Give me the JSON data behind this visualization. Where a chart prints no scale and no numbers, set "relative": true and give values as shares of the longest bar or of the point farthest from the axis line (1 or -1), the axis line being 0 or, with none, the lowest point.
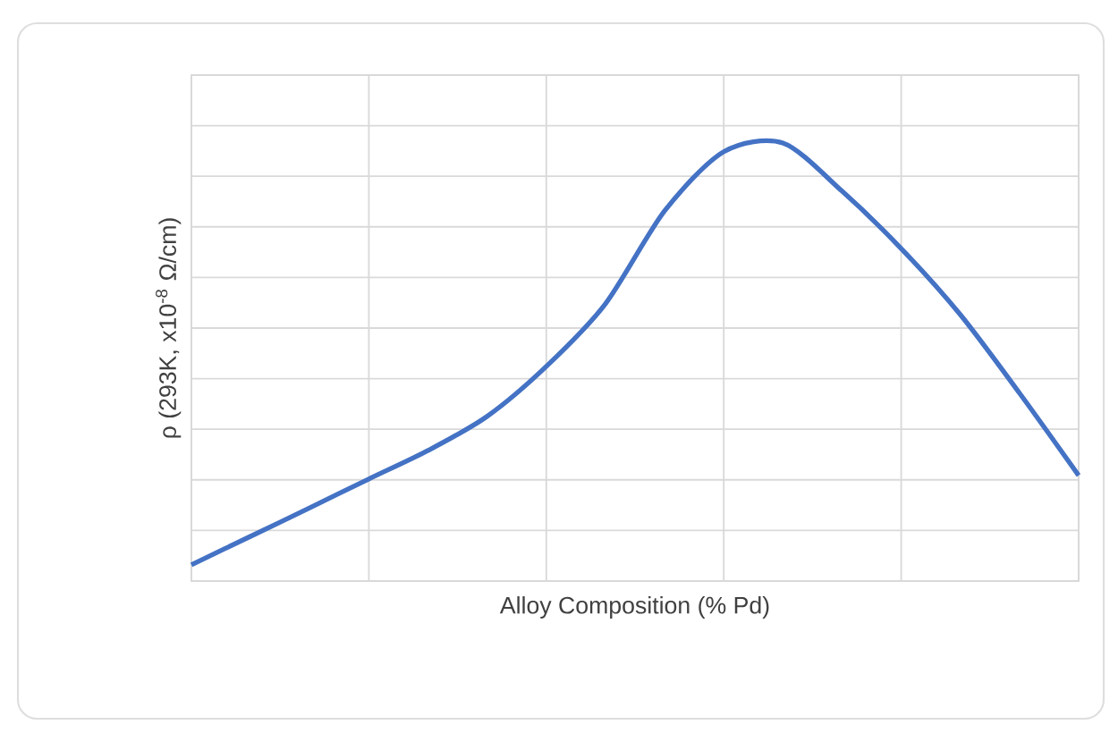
{
  "chart_data": {
    "type": "line",
    "relative": true,
    "xlabel": "Alloy Composition (% Pd)",
    "ylabel": "ρ (293K, x10$^{-8}$ Ω/cm)",
    "categories": [
      null,
      null,
      null,
      null,
      null,
      null,
      null,
      null,
      null,
      null,
      null,
      null,
      null,
      null,
      null,
      null
    ],
    "series": [
      {
        "color": "#4472c4",
        "values": [
          0.037,
          0.102,
          0.167,
          0.233,
          0.298,
          0.376,
          0.49,
          0.633,
          0.845,
          0.98,
          1.0,
          0.89,
          0.759,
          0.608,
          0.429,
          0.241
        ]
      }
    ],
    "grid": true,
    "marker": "none",
    "line_style": "solid"
  }
}
